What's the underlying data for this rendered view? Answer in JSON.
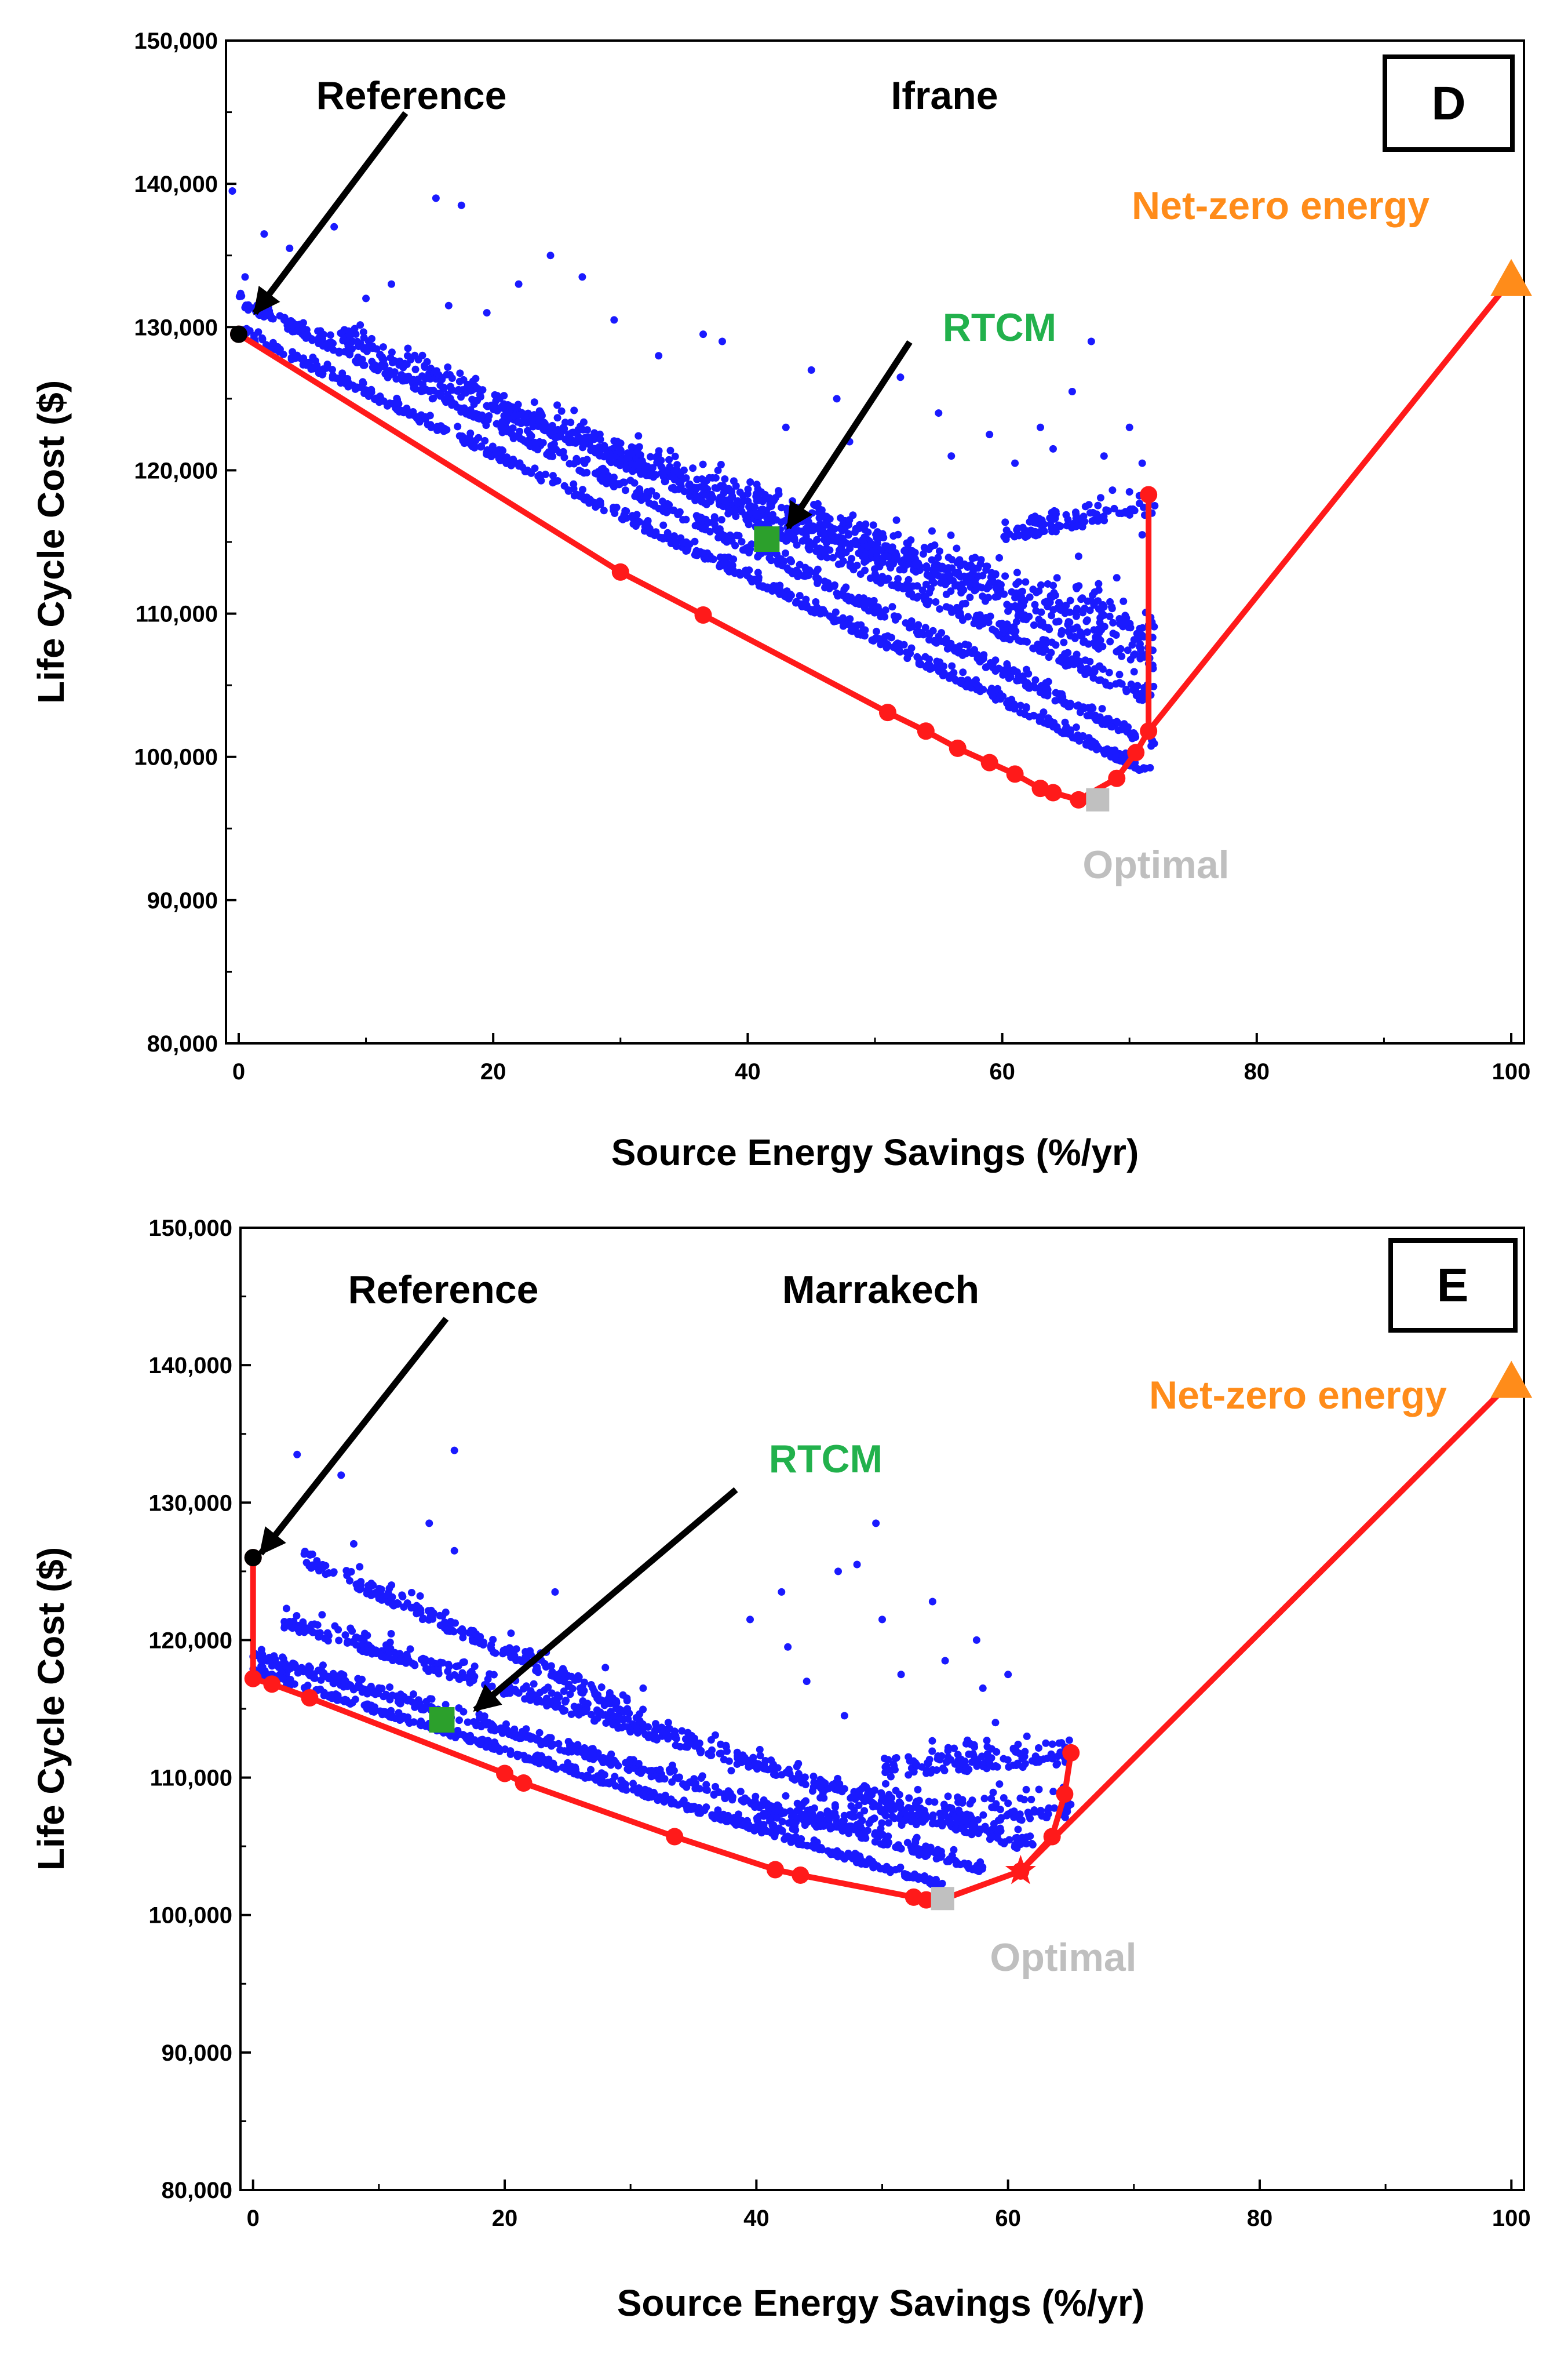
{
  "chart_data": [
    {
      "type": "scatter",
      "panel_label": "D",
      "title": "Ifrane",
      "xlabel": "Source Energy Savings (%/yr)",
      "ylabel": "Life Cycle Cost ($)",
      "xlim": [
        -1,
        101
      ],
      "ylim": [
        80000,
        150000
      ],
      "x_ticks": [
        0,
        20,
        40,
        60,
        80,
        100
      ],
      "x_tick_labels": [
        "0",
        "20",
        "40",
        "60",
        "80",
        "100"
      ],
      "y_ticks": [
        80000,
        90000,
        100000,
        110000,
        120000,
        130000,
        140000,
        150000
      ],
      "y_tick_labels": [
        "80,000",
        "90,000",
        "100,000",
        "110,000",
        "120,000",
        "130,000",
        "140,000",
        "150,000"
      ],
      "grid": false,
      "colors": {
        "cloud": "#1a1aff",
        "pareto": "#ff1a1a",
        "rtcm": "#2ca02c",
        "optimal": "#c0c0c0",
        "netzero": "#ff8c1a",
        "reference": "#000000"
      },
      "bands": [
        {
          "x0": 0,
          "x1": 72,
          "y0": 129500,
          "y1": 98500,
          "spread": 1200
        },
        {
          "x0": 0,
          "x1": 72,
          "y0": 131500,
          "y1": 100500,
          "spread": 1600
        },
        {
          "x0": 8,
          "x1": 72,
          "y0": 129000,
          "y1": 103500,
          "spread": 2200
        },
        {
          "x0": 20,
          "x1": 72,
          "y0": 124000,
          "y1": 106000,
          "spread": 3000
        },
        {
          "x0": 40,
          "x1": 72,
          "y0": 117000,
          "y1": 108000,
          "spread": 3500
        },
        {
          "x0": 60,
          "x1": 72,
          "y0": 115000,
          "y1": 117000,
          "spread": 2500
        }
      ],
      "scatter_extra": [
        {
          "x": -0.5,
          "y": 139500
        },
        {
          "x": 0.5,
          "y": 133500
        },
        {
          "x": 2,
          "y": 136500
        },
        {
          "x": 4,
          "y": 135500
        },
        {
          "x": 7.5,
          "y": 137000
        },
        {
          "x": 15.5,
          "y": 139000
        },
        {
          "x": 16.5,
          "y": 131500
        },
        {
          "x": 17.5,
          "y": 138500
        },
        {
          "x": 24.5,
          "y": 135000
        },
        {
          "x": 27,
          "y": 133500
        },
        {
          "x": 22,
          "y": 133000
        },
        {
          "x": 19.5,
          "y": 131000
        },
        {
          "x": 38,
          "y": 129000
        },
        {
          "x": 36.5,
          "y": 129500
        },
        {
          "x": 47,
          "y": 125000
        },
        {
          "x": 43,
          "y": 123000
        },
        {
          "x": 52,
          "y": 126500
        },
        {
          "x": 55,
          "y": 124000
        },
        {
          "x": 59,
          "y": 122500
        },
        {
          "x": 63,
          "y": 123000
        },
        {
          "x": 64,
          "y": 121500
        },
        {
          "x": 67,
          "y": 129000
        },
        {
          "x": 65.5,
          "y": 125500
        },
        {
          "x": 70,
          "y": 123000
        },
        {
          "x": 68,
          "y": 121000
        },
        {
          "x": 71,
          "y": 120500
        },
        {
          "x": 67.5,
          "y": 116500
        },
        {
          "x": 70,
          "y": 118500
        },
        {
          "x": 66,
          "y": 114000
        },
        {
          "x": 69,
          "y": 112500
        },
        {
          "x": 71,
          "y": 115500
        },
        {
          "x": 56,
          "y": 121000
        },
        {
          "x": 61,
          "y": 120500
        },
        {
          "x": 48,
          "y": 122000
        },
        {
          "x": 33,
          "y": 128000
        },
        {
          "x": 29.5,
          "y": 130500
        },
        {
          "x": 12,
          "y": 133000
        },
        {
          "x": 10,
          "y": 132000
        },
        {
          "x": 45,
          "y": 127000
        }
      ],
      "pareto_front": [
        {
          "x": 0,
          "y": 129500
        },
        {
          "x": 30,
          "y": 112900
        },
        {
          "x": 36.5,
          "y": 109900
        },
        {
          "x": 51,
          "y": 103100
        },
        {
          "x": 54,
          "y": 101800
        },
        {
          "x": 56.5,
          "y": 100600
        },
        {
          "x": 59,
          "y": 99600
        },
        {
          "x": 61,
          "y": 98800
        },
        {
          "x": 63,
          "y": 97800
        },
        {
          "x": 64,
          "y": 97500
        },
        {
          "x": 66,
          "y": 97000
        },
        {
          "x": 69,
          "y": 98500
        },
        {
          "x": 70.5,
          "y": 100300
        },
        {
          "x": 71.5,
          "y": 101800
        },
        {
          "x": 71.5,
          "y": 118300
        }
      ],
      "netzero_line": [
        {
          "x": 71.5,
          "y": 101800
        },
        {
          "x": 100,
          "y": 133300
        }
      ],
      "reference": {
        "label": "Reference",
        "x": 0,
        "y": 129500
      },
      "rtcm": {
        "label": "RTCM",
        "x": 41.5,
        "y": 115200
      },
      "optimal": {
        "label": "Optimal",
        "x": 67.5,
        "y": 97000
      },
      "net_zero": {
        "label": "Net-zero energy",
        "x": 100,
        "y": 133300
      }
    },
    {
      "type": "scatter",
      "panel_label": "E",
      "title": "Marrakech",
      "xlabel": "Source Energy Savings (%/yr)",
      "ylabel": "Life Cycle Cost ($)",
      "xlim": [
        -1,
        101
      ],
      "ylim": [
        80000,
        150000
      ],
      "x_ticks": [
        0,
        20,
        40,
        60,
        80,
        100
      ],
      "x_tick_labels": [
        "0",
        "20",
        "40",
        "60",
        "80",
        "100"
      ],
      "y_ticks": [
        80000,
        90000,
        100000,
        110000,
        120000,
        130000,
        140000,
        150000
      ],
      "y_tick_labels": [
        "80,000",
        "90,000",
        "100,000",
        "110,000",
        "120,000",
        "130,000",
        "140,000",
        "150,000"
      ],
      "grid": false,
      "colors": {
        "cloud": "#1a1aff",
        "pareto": "#ff1a1a",
        "rtcm": "#2ca02c",
        "optimal": "#c0c0c0",
        "netzero": "#ff8c1a",
        "reference": "#000000"
      },
      "bands": [
        {
          "x0": 0,
          "x1": 55,
          "y0": 117500,
          "y1": 101800,
          "spread": 900
        },
        {
          "x0": 0,
          "x1": 58,
          "y0": 118500,
          "y1": 103000,
          "spread": 1400
        },
        {
          "x0": 2,
          "x1": 62,
          "y0": 121000,
          "y1": 104500,
          "spread": 2000
        },
        {
          "x0": 4,
          "x1": 30,
          "y0": 125500,
          "y1": 114500,
          "spread": 2000
        },
        {
          "x0": 40,
          "x1": 65,
          "y0": 106000,
          "y1": 107000,
          "spread": 3500
        },
        {
          "x0": 50,
          "x1": 65,
          "y0": 110000,
          "y1": 111000,
          "spread": 3000
        }
      ],
      "scatter_extra": [
        {
          "x": 3.5,
          "y": 133500
        },
        {
          "x": 7,
          "y": 132000
        },
        {
          "x": 16,
          "y": 133800
        },
        {
          "x": 14,
          "y": 128500
        },
        {
          "x": 8,
          "y": 127000
        },
        {
          "x": 16,
          "y": 126500
        },
        {
          "x": 24,
          "y": 123500
        },
        {
          "x": 26,
          "y": 116500
        },
        {
          "x": 31,
          "y": 116500
        },
        {
          "x": 33,
          "y": 114000
        },
        {
          "x": 39.5,
          "y": 121500
        },
        {
          "x": 42,
          "y": 123500
        },
        {
          "x": 42.5,
          "y": 119500
        },
        {
          "x": 46.5,
          "y": 125000
        },
        {
          "x": 48,
          "y": 125500
        },
        {
          "x": 49.5,
          "y": 128500
        },
        {
          "x": 50,
          "y": 121500
        },
        {
          "x": 51.5,
          "y": 117500
        },
        {
          "x": 54,
          "y": 122800
        },
        {
          "x": 55,
          "y": 118500
        },
        {
          "x": 57.5,
          "y": 120000
        },
        {
          "x": 58,
          "y": 116500
        },
        {
          "x": 60,
          "y": 117500
        },
        {
          "x": 59,
          "y": 114000
        },
        {
          "x": 61.5,
          "y": 113000
        },
        {
          "x": 63,
          "y": 112500
        },
        {
          "x": 64.5,
          "y": 111500
        },
        {
          "x": 44,
          "y": 117000
        },
        {
          "x": 47,
          "y": 114500
        },
        {
          "x": 38,
          "y": 110500
        },
        {
          "x": 20.5,
          "y": 120500
        },
        {
          "x": 22,
          "y": 119000
        },
        {
          "x": 11,
          "y": 124000
        },
        {
          "x": 13,
          "y": 122500
        },
        {
          "x": 35.5,
          "y": 112000
        },
        {
          "x": 28,
          "y": 118000
        }
      ],
      "pareto_front": [
        {
          "x": 0,
          "y": 126000
        },
        {
          "x": 0,
          "y": 117200
        },
        {
          "x": 1.5,
          "y": 116800
        },
        {
          "x": 4.5,
          "y": 115800
        },
        {
          "x": 20,
          "y": 110300
        },
        {
          "x": 21.5,
          "y": 109600
        },
        {
          "x": 33.5,
          "y": 105700
        },
        {
          "x": 41.5,
          "y": 103300
        },
        {
          "x": 43.5,
          "y": 102900
        },
        {
          "x": 52.5,
          "y": 101300
        },
        {
          "x": 53.5,
          "y": 101100
        },
        {
          "x": 55,
          "y": 101200
        },
        {
          "x": 61,
          "y": 103200
        },
        {
          "x": 63.5,
          "y": 105700
        },
        {
          "x": 64.5,
          "y": 108800
        },
        {
          "x": 65,
          "y": 111800
        }
      ],
      "netzero_line": [
        {
          "x": 61,
          "y": 103200
        },
        {
          "x": 100,
          "y": 138800
        }
      ],
      "reference": {
        "label": "Reference",
        "x": 0,
        "y": 126000
      },
      "rtcm": {
        "label": "RTCM",
        "x": 15,
        "y": 114200
      },
      "optimal": {
        "label": "Optimal",
        "x": 54.8,
        "y": 101200
      },
      "star": {
        "x": 61,
        "y": 103200
      },
      "net_zero": {
        "label": "Net-zero energy",
        "x": 100,
        "y": 138800
      }
    }
  ]
}
